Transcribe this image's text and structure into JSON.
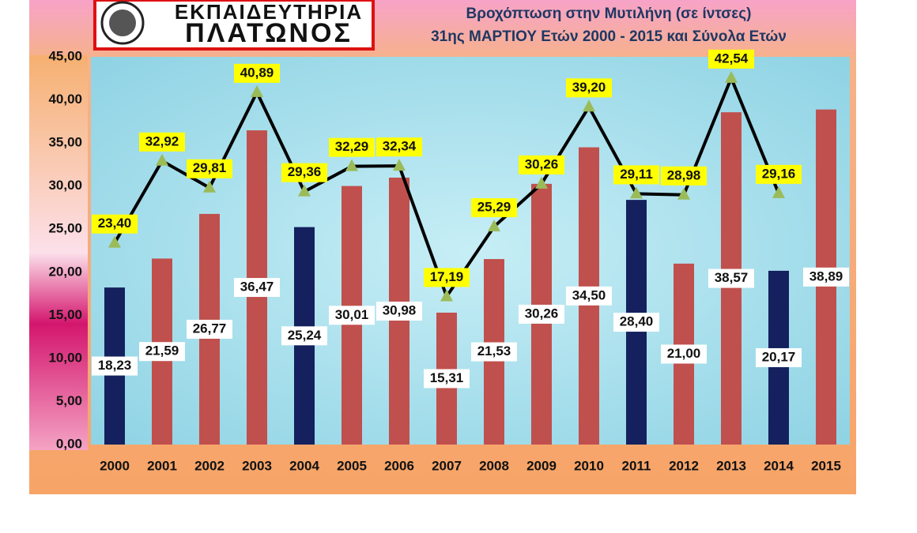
{
  "logo": {
    "line1": "ΕΚΠΑΙΔΕΥΤΗΡΙΑ",
    "line2": "ΠΛΑΤΩΝΟΣ"
  },
  "chart_data": {
    "type": "bar",
    "title": "Βροχόπτωση στην Μυτιλήνη (σε ίντσες)",
    "subtitle": "31ης ΜΑΡΤΙΟΥ Ετών 2000 - 2015 και Σύνολα Ετών",
    "categories": [
      "2000",
      "2001",
      "2002",
      "2003",
      "2004",
      "2005",
      "2006",
      "2007",
      "2008",
      "2009",
      "2010",
      "2011",
      "2012",
      "2013",
      "2014",
      "2015"
    ],
    "series": [
      {
        "type": "bar",
        "values": [
          18.23,
          21.59,
          26.77,
          36.47,
          25.24,
          30.01,
          30.98,
          15.31,
          21.53,
          30.26,
          34.5,
          28.4,
          21.0,
          38.57,
          20.17,
          38.89
        ],
        "value_labels": [
          "18,23",
          "21,59",
          "26,77",
          "36,47",
          "25,24",
          "30,01",
          "30,98",
          "15,31",
          "21,53",
          "30,26",
          "34,50",
          "28,40",
          "21,00",
          "38,57",
          "20,17",
          "38,89"
        ],
        "colors": [
          "#14215e",
          "#c0504d",
          "#c0504d",
          "#c0504d",
          "#14215e",
          "#c0504d",
          "#c0504d",
          "#c0504d",
          "#c0504d",
          "#c0504d",
          "#c0504d",
          "#14215e",
          "#c0504d",
          "#c0504d",
          "#14215e",
          "#c0504d"
        ]
      },
      {
        "type": "line",
        "color": "#000000",
        "marker_color": "#9bbb59",
        "values": [
          23.4,
          32.92,
          29.81,
          40.89,
          29.36,
          32.29,
          32.34,
          17.19,
          25.29,
          30.26,
          39.2,
          29.11,
          28.98,
          42.54,
          29.16,
          null
        ],
        "value_labels": [
          "23,40",
          "32,92",
          "29,81",
          "40,89",
          "29,36",
          "32,29",
          "32,34",
          "17,19",
          "25,29",
          "30,26",
          "39,20",
          "29,11",
          "28,98",
          "42,54",
          "29,16",
          null
        ]
      }
    ],
    "ylim": [
      0,
      45
    ],
    "yticks": [
      {
        "value": 0,
        "label": "0,00"
      },
      {
        "value": 5,
        "label": "5,00"
      },
      {
        "value": 10,
        "label": "10,00"
      },
      {
        "value": 15,
        "label": "15,00"
      },
      {
        "value": 20,
        "label": "20,00"
      },
      {
        "value": 25,
        "label": "25,00"
      },
      {
        "value": 30,
        "label": "30,00"
      },
      {
        "value": 35,
        "label": "35,00"
      },
      {
        "value": 40,
        "label": "40,00"
      },
      {
        "value": 45,
        "label": "45,00"
      }
    ],
    "grid": false
  }
}
